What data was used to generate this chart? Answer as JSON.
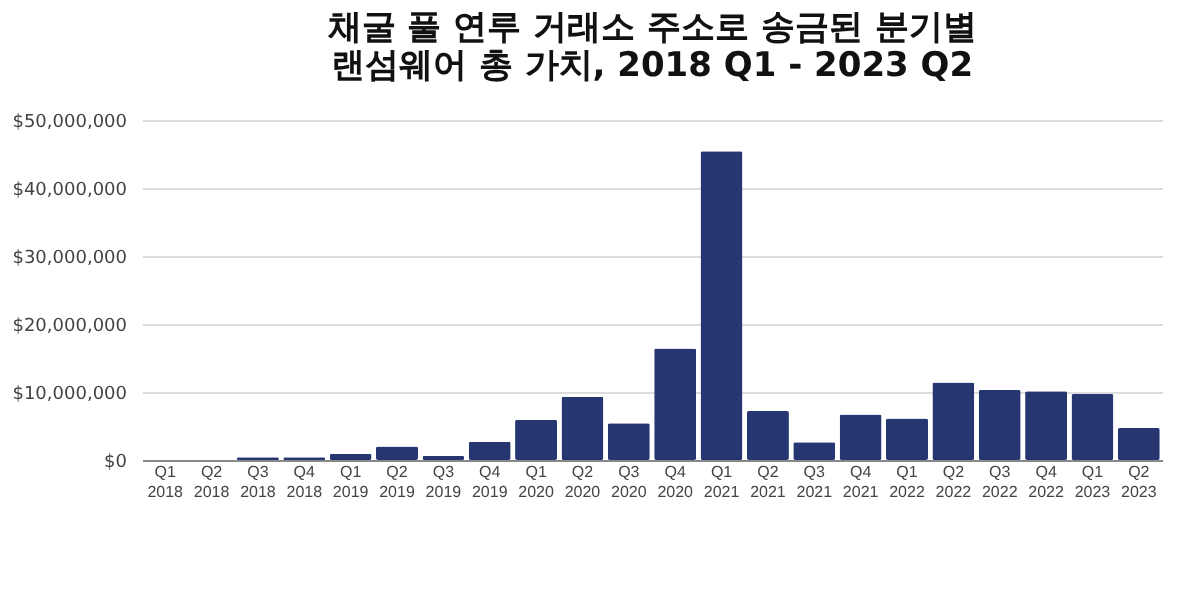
{
  "chart_data": {
    "type": "bar",
    "title": "채굴 풀 연루 거래소 주소로 송금된 분기별\n랜섬웨어 총 가치, 2018 Q1 - 2023 Q2",
    "categories": [
      "Q1 2018",
      "Q2 2018",
      "Q3 2018",
      "Q4 2018",
      "Q1 2019",
      "Q2 2019",
      "Q3 2019",
      "Q4 2019",
      "Q1 2020",
      "Q2 2020",
      "Q3 2020",
      "Q4 2020",
      "Q1 2021",
      "Q2 2021",
      "Q3 2021",
      "Q4 2021",
      "Q1 2022",
      "Q2 2022",
      "Q3 2022",
      "Q4 2022",
      "Q1 2023",
      "Q2 2023"
    ],
    "values": [
      0,
      0,
      400000,
      400000,
      900000,
      2000000,
      600000,
      2700000,
      5900000,
      9300000,
      5400000,
      16400000,
      45400000,
      7200000,
      2600000,
      6700000,
      6100000,
      11400000,
      10300000,
      10100000,
      9700000,
      4700000
    ],
    "color": "#253670",
    "ylim": [
      0,
      50000000
    ],
    "yticks": [
      {
        "value": 0,
        "label": "$0"
      },
      {
        "value": 10000000,
        "label": "$10,000,000"
      },
      {
        "value": 20000000,
        "label": "$20,000,000"
      },
      {
        "value": 30000000,
        "label": "$30,000,000"
      },
      {
        "value": 40000000,
        "label": "$40,000,000"
      },
      {
        "value": 50000000,
        "label": "$50,000,000"
      }
    ],
    "grid": "y"
  }
}
